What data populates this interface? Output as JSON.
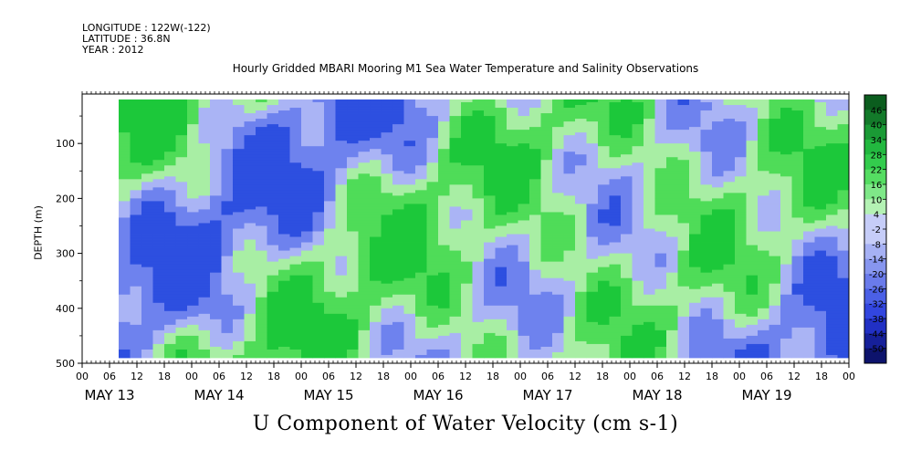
{
  "header": {
    "longitude": "LONGITUDE : 122W(-122)",
    "latitude": "LATITUDE : 36.8N",
    "year": "YEAR : 2012"
  },
  "chart_data": {
    "type": "heatmap",
    "title": "Hourly Gridded MBARI Mooring M1 Sea Water Temperature and Salinity Observations",
    "bottom_title": "U Component of Water Velocity (cm s-1)",
    "ylabel": "DEPTH (m)",
    "xlabel": "",
    "ylim": [
      500,
      10
    ],
    "y_ticks": [
      "100",
      "200",
      "300",
      "400",
      "500"
    ],
    "x_hour_ticks": [
      "00",
      "06",
      "12",
      "18",
      "00",
      "06",
      "12",
      "18",
      "00",
      "06",
      "12",
      "18",
      "00",
      "06",
      "12",
      "18",
      "00",
      "06",
      "12",
      "18",
      "00",
      "06",
      "12",
      "18",
      "00",
      "06",
      "12",
      "18",
      "00"
    ],
    "x_day_labels": [
      "MAY 13",
      "MAY 14",
      "MAY 15",
      "MAY 16",
      "MAY 17",
      "MAY 18",
      "MAY 19"
    ],
    "colorbar": {
      "labels": [
        "46",
        "40",
        "34",
        "28",
        "22",
        "16",
        "10",
        "4",
        "-2",
        "-8",
        "-14",
        "-20",
        "-26",
        "-32",
        "-38",
        "-44",
        "-50"
      ],
      "range": [
        -50,
        50
      ]
    },
    "description_values": {
      "data_start": "MAY 13 08",
      "data_end": "MAY 20 00",
      "depth_min": 20,
      "depth_max": 490
    }
  },
  "colors": {
    "strong_blue": "#2d4fe0",
    "mid_blue": "#6e82ee",
    "light_blue": "#aab4f5",
    "light_green": "#a8eea4",
    "mid_green": "#4fdc58",
    "strong_green": "#1cc83a"
  }
}
